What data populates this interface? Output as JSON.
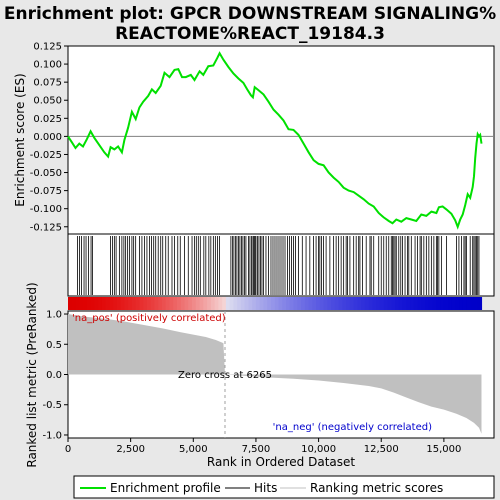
{
  "chart_data": {
    "type": "line",
    "title_line1": "Enrichment plot: GPCR DOWNSTREAM SIGNALING%",
    "title_line2": "REACTOME%REACT_19184.3",
    "top_panel": {
      "ylabel": "Enrichment score (ES)",
      "ylim": [
        -0.135,
        0.125
      ],
      "yticks": [
        "0.125",
        "0.100",
        "0.075",
        "0.050",
        "0.025",
        "0.000",
        "-0.025",
        "-0.050",
        "-0.075",
        "-0.100",
        "-0.125"
      ],
      "series_name": "Enrichment profile",
      "series_color": "#00e000",
      "es_curve": [
        [
          0,
          0.0
        ],
        [
          150,
          -0.008
        ],
        [
          300,
          -0.016
        ],
        [
          450,
          -0.01
        ],
        [
          600,
          -0.014
        ],
        [
          750,
          -0.004
        ],
        [
          900,
          0.007
        ],
        [
          1050,
          -0.002
        ],
        [
          1250,
          -0.012
        ],
        [
          1450,
          -0.022
        ],
        [
          1600,
          -0.028
        ],
        [
          1700,
          -0.015
        ],
        [
          1850,
          -0.018
        ],
        [
          2000,
          -0.014
        ],
        [
          2150,
          -0.022
        ],
        [
          2250,
          -0.005
        ],
        [
          2400,
          0.012
        ],
        [
          2550,
          0.034
        ],
        [
          2700,
          0.024
        ],
        [
          2850,
          0.04
        ],
        [
          3000,
          0.048
        ],
        [
          3200,
          0.056
        ],
        [
          3350,
          0.065
        ],
        [
          3500,
          0.06
        ],
        [
          3700,
          0.07
        ],
        [
          3850,
          0.088
        ],
        [
          4050,
          0.082
        ],
        [
          4250,
          0.092
        ],
        [
          4400,
          0.093
        ],
        [
          4550,
          0.082
        ],
        [
          4700,
          0.082
        ],
        [
          4900,
          0.085
        ],
        [
          5050,
          0.078
        ],
        [
          5250,
          0.09
        ],
        [
          5400,
          0.085
        ],
        [
          5600,
          0.097
        ],
        [
          5800,
          0.098
        ],
        [
          5950,
          0.108
        ],
        [
          6050,
          0.115
        ],
        [
          6200,
          0.106
        ],
        [
          6400,
          0.096
        ],
        [
          6600,
          0.087
        ],
        [
          6800,
          0.08
        ],
        [
          7000,
          0.074
        ],
        [
          7150,
          0.065
        ],
        [
          7300,
          0.057
        ],
        [
          7380,
          0.054
        ],
        [
          7450,
          0.068
        ],
        [
          7600,
          0.064
        ],
        [
          7800,
          0.058
        ],
        [
          8000,
          0.048
        ],
        [
          8200,
          0.037
        ],
        [
          8400,
          0.03
        ],
        [
          8600,
          0.022
        ],
        [
          8800,
          0.01
        ],
        [
          9000,
          0.009
        ],
        [
          9200,
          0.002
        ],
        [
          9400,
          -0.01
        ],
        [
          9600,
          -0.022
        ],
        [
          9800,
          -0.033
        ],
        [
          10000,
          -0.038
        ],
        [
          10200,
          -0.04
        ],
        [
          10400,
          -0.05
        ],
        [
          10600,
          -0.057
        ],
        [
          10800,
          -0.063
        ],
        [
          11000,
          -0.071
        ],
        [
          11200,
          -0.075
        ],
        [
          11400,
          -0.077
        ],
        [
          11600,
          -0.082
        ],
        [
          11800,
          -0.087
        ],
        [
          12000,
          -0.093
        ],
        [
          12200,
          -0.097
        ],
        [
          12400,
          -0.106
        ],
        [
          12600,
          -0.112
        ],
        [
          12800,
          -0.117
        ],
        [
          12950,
          -0.12
        ],
        [
          13100,
          -0.115
        ],
        [
          13300,
          -0.118
        ],
        [
          13500,
          -0.113
        ],
        [
          13700,
          -0.115
        ],
        [
          13900,
          -0.117
        ],
        [
          14100,
          -0.108
        ],
        [
          14300,
          -0.11
        ],
        [
          14500,
          -0.104
        ],
        [
          14700,
          -0.106
        ],
        [
          14800,
          -0.098
        ],
        [
          14950,
          -0.097
        ],
        [
          15100,
          -0.101
        ],
        [
          15300,
          -0.107
        ],
        [
          15450,
          -0.116
        ],
        [
          15550,
          -0.125
        ],
        [
          15650,
          -0.115
        ],
        [
          15750,
          -0.108
        ],
        [
          15850,
          -0.095
        ],
        [
          15950,
          -0.08
        ],
        [
          16050,
          -0.085
        ],
        [
          16150,
          -0.07
        ],
        [
          16200,
          -0.055
        ],
        [
          16250,
          -0.03
        ],
        [
          16300,
          -0.01
        ],
        [
          16350,
          0.003
        ],
        [
          16400,
          0.0
        ],
        [
          16450,
          0.002
        ],
        [
          16500,
          -0.01
        ]
      ]
    },
    "hits_panel": {
      "hit_positions": [
        380,
        460,
        540,
        640,
        720,
        820,
        920,
        980,
        1700,
        1780,
        1850,
        1920,
        2050,
        2150,
        2230,
        2300,
        2380,
        2450,
        2550,
        2620,
        2700,
        2850,
        2950,
        3050,
        3150,
        3250,
        3330,
        3420,
        3500,
        3600,
        3700,
        3780,
        3900,
        4000,
        4150,
        4250,
        4380,
        4480,
        4650,
        4800,
        4950,
        5050,
        5120,
        5200,
        5280,
        5420,
        5500,
        5620,
        5700,
        5800,
        5880,
        5970,
        6050,
        6500,
        6560,
        6620,
        6680,
        6740,
        6800,
        6860,
        6920,
        6980,
        7040,
        7100,
        7200,
        7260,
        7320,
        7380,
        7420,
        7460,
        7500,
        7560,
        7620,
        7680,
        7740,
        7800,
        7900,
        8000,
        8100,
        8180,
        8260,
        8340,
        8420,
        8500,
        8580,
        8660,
        8760,
        8840,
        8920,
        9000,
        9080,
        9200,
        9350,
        9500,
        9650,
        9800,
        9900,
        10000,
        10050,
        10120,
        10200,
        10300,
        10450,
        10600,
        10700,
        10800,
        10900,
        11000,
        11100,
        11150,
        11250,
        11400,
        11500,
        11600,
        11650,
        11750,
        11900,
        12050,
        12100,
        12200,
        12400,
        12500,
        12600,
        12700,
        12800,
        12900,
        12950,
        13000,
        13050,
        13100,
        13200,
        13280,
        13350,
        13450,
        13550,
        13600,
        13700,
        13850,
        13950,
        14050,
        14100,
        14200,
        14300,
        14400,
        14500,
        14600,
        14700,
        14750,
        14800,
        14900,
        15100,
        15500,
        15600,
        15700,
        15800,
        15850,
        15900,
        16050,
        16150,
        16200,
        16250,
        16300,
        16350,
        16400
      ]
    },
    "metric_panel": {
      "ylabel": "Ranked list metric (PreRanked)",
      "ylim": [
        -1.05,
        1.05
      ],
      "yticks": [
        "1.0",
        "0.5",
        "0.0",
        "-0.5",
        "-1.0"
      ],
      "fill_color": "#c0c0c0",
      "metric_curve": [
        [
          0,
          1.0
        ],
        [
          300,
          0.98
        ],
        [
          800,
          0.95
        ],
        [
          1500,
          0.92
        ],
        [
          2200,
          0.88
        ],
        [
          3000,
          0.82
        ],
        [
          3800,
          0.76
        ],
        [
          4500,
          0.7
        ],
        [
          5000,
          0.66
        ],
        [
          5500,
          0.62
        ],
        [
          5900,
          0.57
        ],
        [
          6200,
          0.52
        ],
        [
          6265,
          0.0
        ],
        [
          7000,
          -0.02
        ],
        [
          8000,
          -0.05
        ],
        [
          9000,
          -0.07
        ],
        [
          10000,
          -0.1
        ],
        [
          11000,
          -0.14
        ],
        [
          12000,
          -0.19
        ],
        [
          12500,
          -0.23
        ],
        [
          13000,
          -0.3
        ],
        [
          13500,
          -0.38
        ],
        [
          14000,
          -0.46
        ],
        [
          14500,
          -0.53
        ],
        [
          15000,
          -0.58
        ],
        [
          15500,
          -0.65
        ],
        [
          15900,
          -0.72
        ],
        [
          16200,
          -0.8
        ],
        [
          16400,
          -0.88
        ],
        [
          16500,
          -0.98
        ]
      ],
      "zero_cross_rank": 6265,
      "zero_cross_label": "Zero cross at 6265",
      "pos_label": "'na_pos' (positively correlated)",
      "neg_label": "'na_neg' (negatively correlated)",
      "pos_color": "#cc0000",
      "neg_color": "#0000cc"
    },
    "xaxis": {
      "label": "Rank in Ordered Dataset",
      "xlim": [
        0,
        17000
      ],
      "ticks": [
        0,
        2500,
        5000,
        7500,
        10000,
        12500,
        15000
      ],
      "tick_labels": [
        "0",
        "2,500",
        "5,000",
        "7,500",
        "10,000",
        "12,500",
        "15,000"
      ],
      "n_ranks": 16500
    },
    "legend": {
      "items": [
        {
          "label": "Enrichment profile",
          "color": "#00e000"
        },
        {
          "label": "Hits",
          "color": "#000000"
        },
        {
          "label": "Ranking metric scores",
          "color": "#c0c0c0"
        }
      ]
    }
  }
}
